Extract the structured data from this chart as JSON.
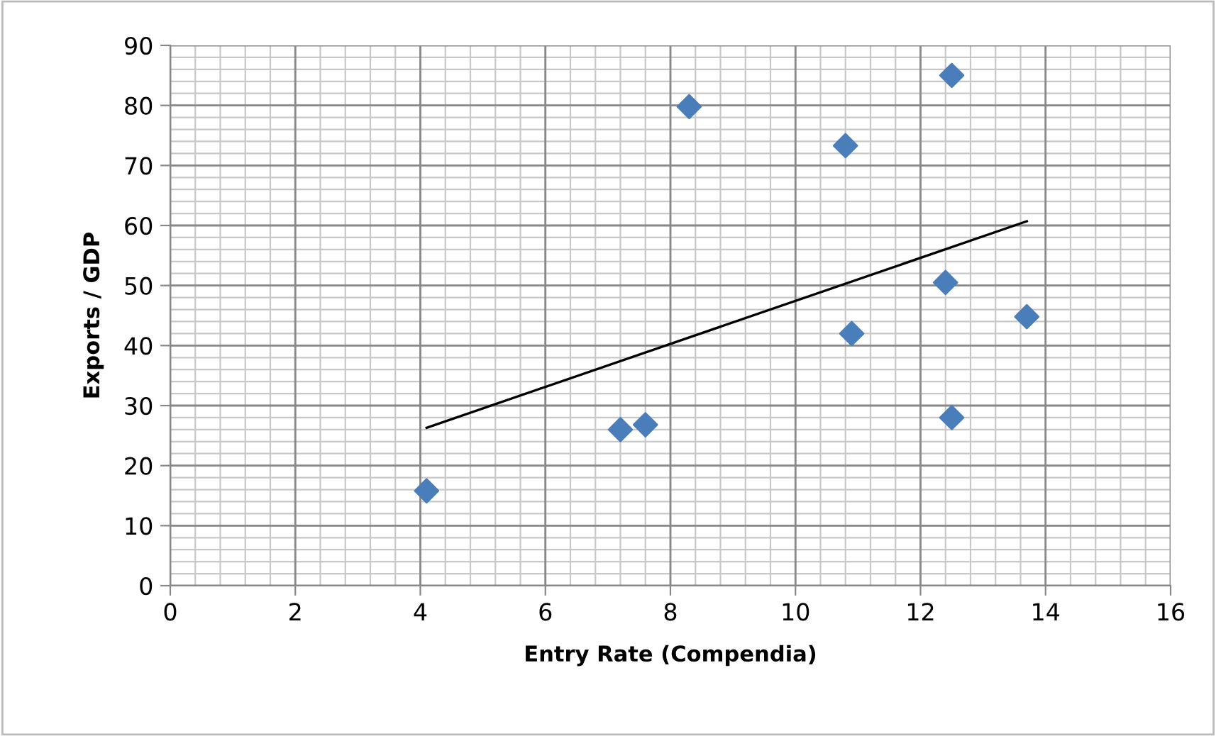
{
  "chart_data": {
    "type": "scatter",
    "xlabel": "Entry Rate (Compendia)",
    "ylabel": "Exports / GDP",
    "xlim": [
      0,
      16
    ],
    "ylim": [
      0,
      90
    ],
    "xticks": [
      0,
      2,
      4,
      6,
      8,
      10,
      12,
      14,
      16
    ],
    "yticks": [
      0,
      10,
      20,
      30,
      40,
      50,
      60,
      70,
      80,
      90
    ],
    "grid": true,
    "marker": "diamond",
    "legend": false,
    "series": [
      {
        "color": "#4a7ebb",
        "x": [
          4.1,
          7.2,
          7.6,
          8.3,
          10.8,
          10.9,
          12.4,
          12.5,
          12.5,
          13.7
        ],
        "values": [
          15.8,
          26,
          26.8,
          79.8,
          73.3,
          42,
          50.5,
          28,
          85,
          44.8
        ]
      },
      {
        "type": "line",
        "color": "#000000",
        "line_style": "solid",
        "marker": "none",
        "x": [
          4.1,
          13.7
        ],
        "values": [
          26.3,
          60.7
        ]
      }
    ]
  }
}
